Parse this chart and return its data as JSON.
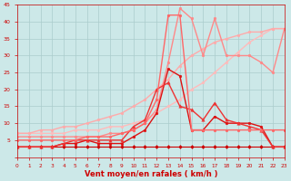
{
  "bg_color": "#cce8e8",
  "grid_color": "#aacccc",
  "xlabel": "Vent moyen/en rafales ( km/h )",
  "xlim": [
    0,
    23
  ],
  "ylim": [
    0,
    45
  ],
  "yticks": [
    0,
    5,
    10,
    15,
    20,
    25,
    30,
    35,
    40,
    45
  ],
  "xticks": [
    0,
    1,
    2,
    3,
    4,
    5,
    6,
    7,
    8,
    9,
    10,
    11,
    12,
    13,
    14,
    15,
    16,
    17,
    18,
    19,
    20,
    21,
    22,
    23
  ],
  "lines": [
    {
      "x": [
        0,
        1,
        2,
        3,
        4,
        5,
        6,
        7,
        8,
        9,
        10,
        11,
        12,
        13,
        14,
        15,
        16,
        17,
        18,
        19,
        20,
        21,
        22,
        23
      ],
      "y": [
        7,
        7,
        7,
        7,
        7,
        8,
        8,
        8,
        9,
        9,
        10,
        11,
        13,
        15,
        17,
        20,
        22,
        25,
        28,
        31,
        34,
        36,
        38,
        38
      ],
      "color": "#ffbbbb",
      "linewidth": 1.0,
      "marker": "o",
      "markersize": 2.0
    },
    {
      "x": [
        0,
        1,
        2,
        3,
        4,
        5,
        6,
        7,
        8,
        9,
        10,
        11,
        12,
        13,
        14,
        15,
        16,
        17,
        18,
        19,
        20,
        21,
        22,
        23
      ],
      "y": [
        7,
        7,
        8,
        8,
        9,
        9,
        10,
        11,
        12,
        13,
        15,
        17,
        20,
        23,
        27,
        30,
        32,
        34,
        35,
        36,
        37,
        37,
        38,
        38
      ],
      "color": "#ffaaaa",
      "linewidth": 1.0,
      "marker": "o",
      "markersize": 2.0
    },
    {
      "x": [
        0,
        1,
        2,
        3,
        4,
        5,
        6,
        7,
        8,
        9,
        10,
        11,
        12,
        13,
        14,
        15,
        16,
        17,
        18,
        19,
        20,
        21,
        22,
        23
      ],
      "y": [
        6,
        6,
        6,
        6,
        6,
        6,
        6,
        6,
        7,
        7,
        8,
        10,
        14,
        28,
        44,
        41,
        30,
        41,
        30,
        30,
        30,
        28,
        25,
        38
      ],
      "color": "#ff8888",
      "linewidth": 1.0,
      "marker": "o",
      "markersize": 2.0
    },
    {
      "x": [
        0,
        1,
        2,
        3,
        4,
        5,
        6,
        7,
        8,
        9,
        10,
        11,
        12,
        13,
        14,
        15,
        16,
        17,
        18,
        19,
        20,
        21,
        22,
        23
      ],
      "y": [
        3,
        3,
        3,
        3,
        3,
        3,
        3,
        3,
        3,
        3,
        3,
        3,
        3,
        3,
        3,
        3,
        3,
        3,
        3,
        3,
        3,
        3,
        3,
        3
      ],
      "color": "#cc0000",
      "linewidth": 0.8,
      "marker": "D",
      "markersize": 2.0
    },
    {
      "x": [
        0,
        1,
        2,
        3,
        4,
        5,
        6,
        7,
        8,
        9,
        10,
        11,
        12,
        13,
        14,
        15,
        16,
        17,
        18,
        19,
        20,
        21,
        22,
        23
      ],
      "y": [
        3,
        3,
        3,
        3,
        4,
        4,
        5,
        4,
        4,
        4,
        6,
        8,
        13,
        26,
        24,
        8,
        8,
        12,
        10,
        10,
        10,
        9,
        3,
        3
      ],
      "color": "#dd1111",
      "linewidth": 1.0,
      "marker": "o",
      "markersize": 2.0
    },
    {
      "x": [
        0,
        1,
        2,
        3,
        4,
        5,
        6,
        7,
        8,
        9,
        10,
        11,
        12,
        13,
        14,
        15,
        16,
        17,
        18,
        19,
        20,
        21,
        22,
        23
      ],
      "y": [
        3,
        3,
        3,
        3,
        4,
        5,
        5,
        5,
        5,
        5,
        9,
        11,
        20,
        22,
        15,
        14,
        11,
        16,
        11,
        10,
        9,
        8,
        3,
        3
      ],
      "color": "#ee3333",
      "linewidth": 1.0,
      "marker": "^",
      "markersize": 2.5
    },
    {
      "x": [
        0,
        1,
        2,
        3,
        4,
        5,
        6,
        7,
        8,
        9,
        10,
        11,
        12,
        13,
        14,
        15,
        16,
        17,
        18,
        19,
        20,
        21,
        22,
        23
      ],
      "y": [
        5,
        5,
        5,
        5,
        5,
        5,
        6,
        6,
        6,
        7,
        8,
        10,
        17,
        42,
        42,
        8,
        8,
        8,
        8,
        8,
        8,
        8,
        8,
        8
      ],
      "color": "#ff6666",
      "linewidth": 1.0,
      "marker": "o",
      "markersize": 2.0
    }
  ]
}
